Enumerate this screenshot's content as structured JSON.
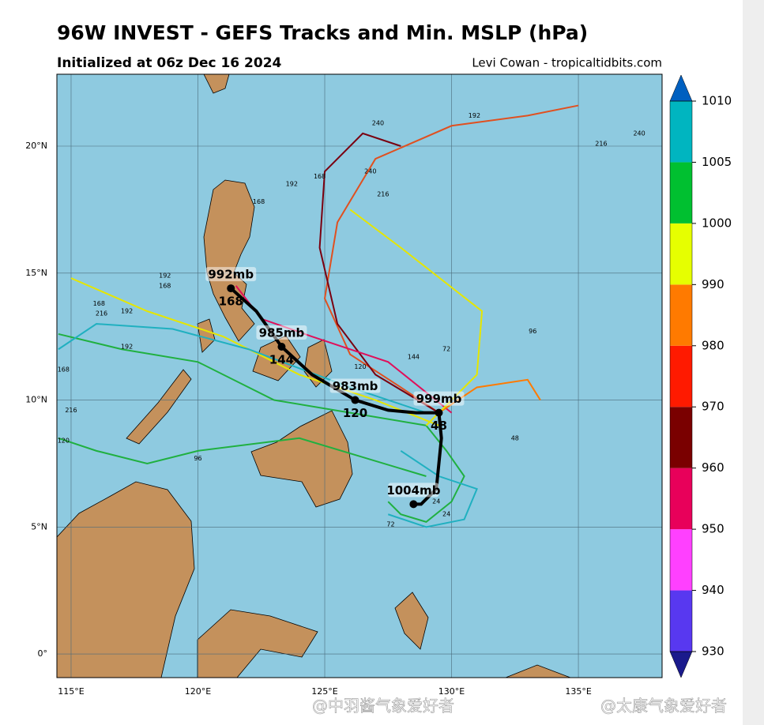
{
  "chart_data": {
    "type": "track_map",
    "title": "96W INVEST - GEFS Tracks and Min. MSLP (hPa)",
    "subtitle": "Initialized at 06z Dec 16 2024",
    "credit": "Levi Cowan - tropicaltidbits.com",
    "watermarks": [
      "@中羽酱气象爱好者",
      "@太康气象爱好者"
    ],
    "xlim": [
      114.44,
      138.3
    ],
    "ylim": [
      -0.93,
      22.83
    ],
    "xticks": [
      {
        "value": 115,
        "label": "115°E"
      },
      {
        "value": 120,
        "label": "120°E"
      },
      {
        "value": 125,
        "label": "125°E"
      },
      {
        "value": 130,
        "label": "130°E"
      },
      {
        "value": 135,
        "label": "135°E"
      }
    ],
    "yticks": [
      {
        "value": 0,
        "label": "0°"
      },
      {
        "value": 5,
        "label": "5°N"
      },
      {
        "value": 10,
        "label": "10°N"
      },
      {
        "value": 15,
        "label": "15°N"
      },
      {
        "value": 20,
        "label": "20°N"
      }
    ],
    "grid": true,
    "colorbar": {
      "ticks": [
        930,
        940,
        950,
        960,
        970,
        980,
        990,
        1000,
        1005,
        1010
      ],
      "colors": [
        "#5838f0",
        "#ff40ff",
        "#e8005a",
        "#7a0000",
        "#ff1a00",
        "#ff7a00",
        "#e6ff00",
        "#00c030",
        "#00b5c0"
      ],
      "under_color": "#1a1a8c",
      "over_color": "#0060c0"
    },
    "series": [
      {
        "color": "#e05020",
        "x": [
          129.5,
          128,
          126,
          125,
          125.5,
          127,
          130,
          133,
          135
        ],
        "y": [
          9.5,
          10.5,
          11.8,
          14,
          17,
          19.5,
          20.8,
          21.2,
          21.6
        ]
      },
      {
        "color": "#e6e600",
        "x": [
          129.5,
          127,
          124,
          121,
          118,
          115
        ],
        "y": [
          9,
          10,
          11,
          12.5,
          13.5,
          14.8
        ]
      },
      {
        "color": "#20b040",
        "x": [
          129,
          126,
          123,
          120,
          117,
          114.5
        ],
        "y": [
          9,
          9.5,
          10,
          11.5,
          12,
          12.6
        ]
      },
      {
        "color": "#20b0c0",
        "x": [
          129,
          126,
          122,
          119,
          116,
          114.5
        ],
        "y": [
          9.5,
          10.5,
          12,
          12.8,
          13,
          12
        ]
      },
      {
        "color": "#7a0010",
        "x": [
          129.5,
          127,
          125.5,
          124.8,
          125,
          126.5,
          128
        ],
        "y": [
          9.5,
          11,
          13,
          16,
          19,
          20.5,
          20
        ]
      },
      {
        "color": "#e0105a",
        "x": [
          130,
          127.5,
          124.5,
          122.5,
          121.5
        ],
        "y": [
          9.5,
          11.5,
          12.5,
          13.2,
          14.5
        ]
      },
      {
        "color": "#20b040",
        "x": [
          129,
          129.8,
          130.5,
          130,
          129,
          128,
          127.5
        ],
        "y": [
          9,
          8,
          7,
          6,
          5.2,
          5.5,
          6
        ]
      },
      {
        "color": "#20b0c0",
        "x": [
          128,
          129.5,
          131,
          130.5,
          129,
          127.5
        ],
        "y": [
          8,
          7,
          6.5,
          5.3,
          5,
          5.5
        ]
      },
      {
        "color": "#ff7a00",
        "x": [
          129.5,
          131,
          133,
          133.5
        ],
        "y": [
          9.5,
          10.5,
          10.8,
          10
        ]
      },
      {
        "color": "#e6e600",
        "x": [
          129,
          131,
          131.2,
          128,
          126
        ],
        "y": [
          9,
          11,
          13.5,
          16,
          17.5
        ]
      },
      {
        "color": "#20b040",
        "x": [
          129,
          124,
          120,
          118,
          116,
          114.5
        ],
        "y": [
          7,
          8.5,
          8,
          7.5,
          8,
          8.5
        ]
      }
    ],
    "hour_labels": [
      {
        "x": 130.9,
        "y": 21.2,
        "text": "192"
      },
      {
        "x": 135.9,
        "y": 20.1,
        "text": "216"
      },
      {
        "x": 137.4,
        "y": 20.5,
        "text": "240"
      },
      {
        "x": 127.1,
        "y": 20.9,
        "text": "240"
      },
      {
        "x": 126.8,
        "y": 19.0,
        "text": "240"
      },
      {
        "x": 127.3,
        "y": 18.1,
        "text": "216"
      },
      {
        "x": 124.8,
        "y": 18.8,
        "text": "168"
      },
      {
        "x": 123.7,
        "y": 18.5,
        "text": "192"
      },
      {
        "x": 122.4,
        "y": 17.8,
        "text": "168"
      },
      {
        "x": 118.7,
        "y": 14.9,
        "text": "192"
      },
      {
        "x": 118.7,
        "y": 14.5,
        "text": "168"
      },
      {
        "x": 116.1,
        "y": 13.8,
        "text": "168"
      },
      {
        "x": 116.2,
        "y": 13.4,
        "text": "216"
      },
      {
        "x": 117.2,
        "y": 13.5,
        "text": "192"
      },
      {
        "x": 117.2,
        "y": 12.1,
        "text": "192"
      },
      {
        "x": 114.7,
        "y": 11.2,
        "text": "168"
      },
      {
        "x": 115,
        "y": 9.6,
        "text": "216"
      },
      {
        "x": 114.7,
        "y": 8.4,
        "text": "120"
      },
      {
        "x": 120,
        "y": 7.7,
        "text": "96"
      },
      {
        "x": 129.8,
        "y": 12.0,
        "text": "72"
      },
      {
        "x": 132.5,
        "y": 8.5,
        "text": "48"
      },
      {
        "x": 129.8,
        "y": 5.5,
        "text": "24"
      },
      {
        "x": 129.4,
        "y": 6.0,
        "text": "24"
      },
      {
        "x": 127.6,
        "y": 5.1,
        "text": "72"
      },
      {
        "x": 126.4,
        "y": 11.3,
        "text": "120"
      },
      {
        "x": 128.5,
        "y": 11.7,
        "text": "144"
      },
      {
        "x": 133.2,
        "y": 12.7,
        "text": "96"
      }
    ],
    "mean_track": {
      "x": [
        121.3,
        122.3,
        123.3,
        124.5,
        126.2,
        127.5,
        128.6,
        129.5,
        129.6,
        129.4,
        128.8,
        128.5
      ],
      "y": [
        14.4,
        13.5,
        12.1,
        11,
        10,
        9.6,
        9.5,
        9.5,
        8.5,
        6.5,
        5.9,
        5.9
      ]
    },
    "mean_labels": [
      {
        "x": 121.3,
        "y": 14.4,
        "pressure": "992mb",
        "hour": "168"
      },
      {
        "x": 123.3,
        "y": 12.1,
        "pressure": "985mb",
        "hour": "144"
      },
      {
        "x": 126.2,
        "y": 10.0,
        "pressure": "983mb",
        "hour": "120"
      },
      {
        "x": 129.5,
        "y": 9.5,
        "pressure": "999mb",
        "hour": "48"
      },
      {
        "x": 128.5,
        "y": 5.9,
        "pressure": "1004mb"
      }
    ]
  }
}
